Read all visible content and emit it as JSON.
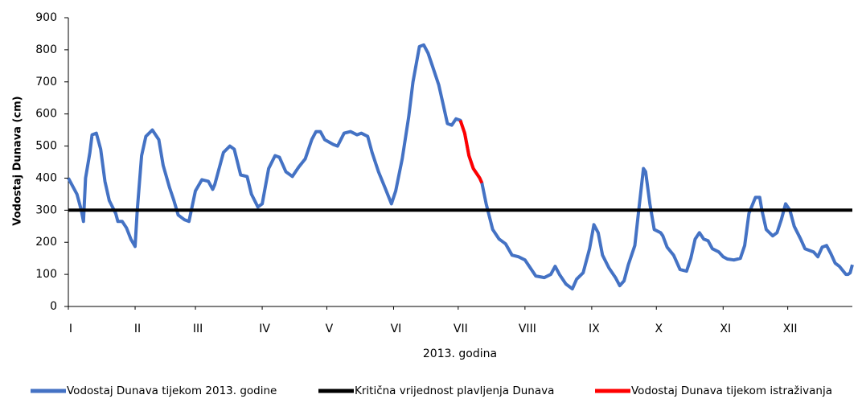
{
  "chart_data": {
    "type": "line",
    "ylabel": "Vodostaj Dunava (cm)",
    "xlabel": "2013. godina",
    "xlim": [
      1,
      365
    ],
    "xticks": [
      {
        "value": 1,
        "label": "I"
      },
      {
        "value": 32,
        "label": "II"
      },
      {
        "value": 60,
        "label": "III"
      },
      {
        "value": 91,
        "label": "IV"
      },
      {
        "value": 121,
        "label": "V"
      },
      {
        "value": 152,
        "label": "VI"
      },
      {
        "value": 182,
        "label": "VII"
      },
      {
        "value": 213,
        "label": "VIII"
      },
      {
        "value": 244,
        "label": "IX"
      },
      {
        "value": 274,
        "label": "X"
      },
      {
        "value": 305,
        "label": "XI"
      },
      {
        "value": 335,
        "label": "XII"
      }
    ],
    "ylim": [
      0,
      900
    ],
    "yticks": [
      0,
      100,
      200,
      300,
      400,
      500,
      600,
      700,
      800,
      900
    ],
    "grid": false,
    "legend": "bottom",
    "series": [
      {
        "name": "Vodostaj Dunava tijekom 2013. godine",
        "color": "#4472c4",
        "x": [
          1,
          5,
          7,
          8,
          9,
          11,
          12,
          14,
          16,
          18,
          20,
          23,
          24,
          26,
          28,
          30,
          32,
          33,
          35,
          37,
          40,
          43,
          45,
          48,
          50,
          52,
          55,
          57,
          60,
          63,
          66,
          68,
          69,
          73,
          76,
          78,
          81,
          84,
          86,
          89,
          91,
          94,
          97,
          99,
          102,
          105,
          108,
          111,
          114,
          116,
          118,
          120,
          124,
          126,
          129,
          132,
          135,
          137,
          140,
          142,
          145,
          148,
          151,
          153,
          156,
          159,
          161,
          164,
          166,
          168,
          170,
          173,
          175,
          177,
          179,
          181,
          183,
          185,
          187,
          189,
          192,
          193,
          195,
          198,
          201,
          204,
          207,
          210,
          213,
          215,
          218,
          222,
          225,
          227,
          229,
          232,
          235,
          237,
          240,
          243,
          245,
          247,
          249,
          252,
          255,
          257,
          259,
          261,
          264,
          266,
          268,
          269,
          271,
          273,
          276,
          277,
          279,
          282,
          285,
          288,
          290,
          292,
          294,
          296,
          298,
          300,
          303,
          305,
          307,
          310,
          313,
          315,
          317,
          320,
          322,
          323,
          325,
          328,
          330,
          332,
          334,
          336,
          338,
          341,
          343,
          345,
          347,
          349,
          351,
          353,
          355,
          357,
          359,
          362,
          363,
          364,
          365
        ],
        "values": [
          400,
          350,
          300,
          265,
          400,
          480,
          535,
          540,
          490,
          390,
          330,
          290,
          265,
          265,
          245,
          210,
          187,
          300,
          470,
          530,
          550,
          520,
          440,
          370,
          330,
          285,
          270,
          265,
          360,
          395,
          390,
          365,
          380,
          480,
          500,
          490,
          410,
          405,
          350,
          310,
          320,
          430,
          470,
          465,
          420,
          405,
          435,
          460,
          520,
          545,
          545,
          520,
          505,
          500,
          540,
          545,
          535,
          540,
          530,
          480,
          420,
          370,
          320,
          360,
          460,
          590,
          700,
          810,
          815,
          790,
          750,
          690,
          630,
          570,
          565,
          585,
          580,
          540,
          470,
          430,
          400,
          385,
          320,
          240,
          210,
          195,
          160,
          155,
          145,
          125,
          95,
          90,
          100,
          125,
          100,
          70,
          55,
          85,
          105,
          180,
          255,
          230,
          160,
          120,
          90,
          65,
          80,
          130,
          190,
          310,
          430,
          420,
          320,
          240,
          230,
          220,
          185,
          160,
          115,
          110,
          150,
          210,
          230,
          210,
          205,
          180,
          170,
          155,
          148,
          145,
          150,
          190,
          290,
          340,
          340,
          300,
          240,
          220,
          230,
          270,
          320,
          300,
          250,
          210,
          180,
          175,
          170,
          155,
          185,
          190,
          165,
          135,
          125,
          100,
          100,
          105,
          130
        ]
      },
      {
        "name": "Kritična vrijednost plavljenja Dunava",
        "color": "#000000",
        "x": [
          1,
          365
        ],
        "values": [
          300,
          300
        ]
      },
      {
        "name": "Vodostaj Dunava tijekom istraživanja",
        "color": "#ff0000",
        "x": [
          183,
          185,
          187,
          189,
          192,
          193
        ],
        "values": [
          580,
          540,
          470,
          430,
          400,
          385
        ]
      }
    ]
  }
}
